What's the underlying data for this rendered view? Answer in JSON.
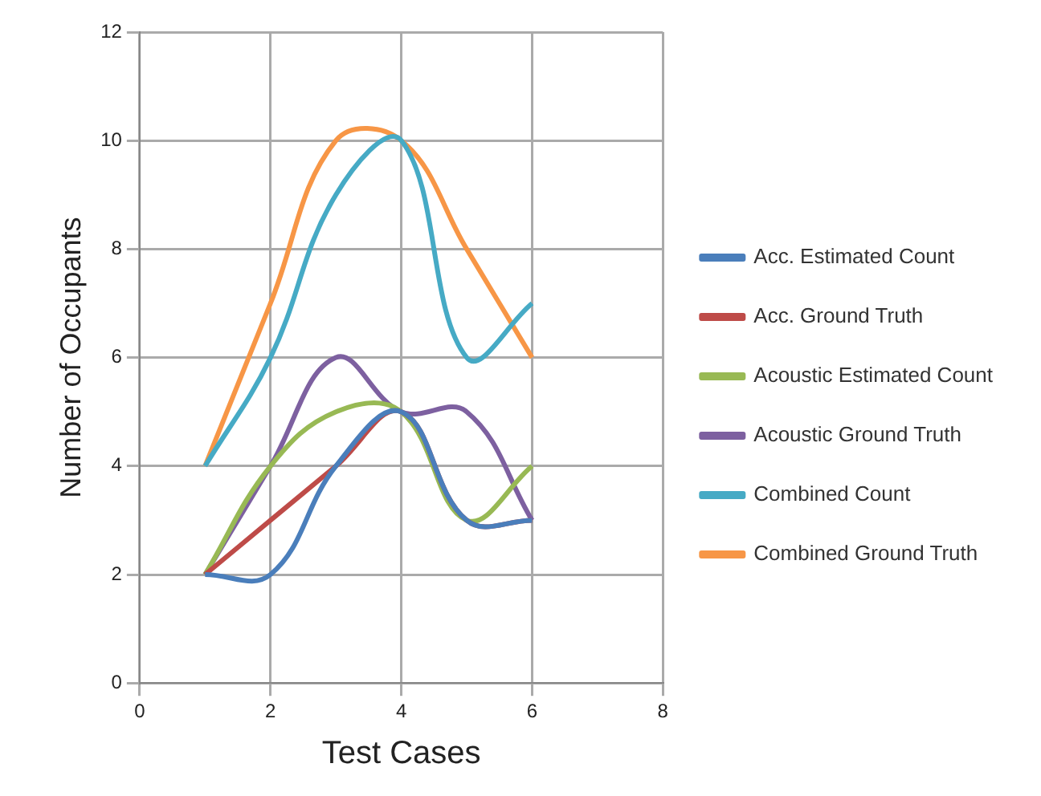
{
  "chart_data": {
    "type": "line",
    "xlabel": "Test Cases",
    "ylabel": "Number of Occupants",
    "x": [
      1,
      2,
      3,
      4,
      5,
      6
    ],
    "series": [
      {
        "name": "Acc. Estimated Count",
        "color": "#4a7ebb",
        "values": [
          2,
          2,
          4,
          5,
          3,
          3
        ]
      },
      {
        "name": "Acc. Ground Truth",
        "color": "#be4b48",
        "values": [
          2,
          3,
          4,
          5,
          3,
          3
        ]
      },
      {
        "name": "Acoustic Estimated Count",
        "color": "#98b954",
        "values": [
          2,
          4,
          5,
          5,
          3,
          4
        ]
      },
      {
        "name": "Acoustic Ground Truth",
        "color": "#7d60a0",
        "values": [
          2,
          4,
          6,
          5,
          5,
          3
        ]
      },
      {
        "name": "Combined Count",
        "color": "#46aac5",
        "values": [
          4,
          6,
          9,
          10,
          6,
          7
        ]
      },
      {
        "name": "Combined Ground Truth",
        "color": "#f79646",
        "values": [
          4,
          7,
          10,
          10,
          8,
          6
        ]
      }
    ],
    "xlim": [
      0,
      8
    ],
    "xticks": [
      0,
      2,
      4,
      6,
      8
    ],
    "ylim": [
      0,
      12
    ],
    "yticks": [
      0,
      2,
      4,
      6,
      8,
      10,
      12
    ],
    "grid": true,
    "legend": "right",
    "marker": "none"
  }
}
